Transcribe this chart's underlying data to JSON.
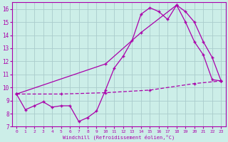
{
  "xlabel": "Windchill (Refroidissement éolien,°C)",
  "bg_color": "#cceee8",
  "grid_color": "#aacccc",
  "line_color": "#aa00aa",
  "xlim": [
    -0.5,
    23.5
  ],
  "ylim": [
    7,
    16.5
  ],
  "xticks": [
    0,
    1,
    2,
    3,
    4,
    5,
    6,
    7,
    8,
    9,
    10,
    11,
    12,
    13,
    14,
    15,
    16,
    17,
    18,
    19,
    20,
    21,
    22,
    23
  ],
  "yticks": [
    7,
    8,
    9,
    10,
    11,
    12,
    13,
    14,
    15,
    16
  ],
  "line1_x": [
    0,
    1,
    2,
    3,
    4,
    5,
    6,
    7,
    8,
    9,
    10,
    11,
    12,
    13,
    14,
    15,
    16,
    17,
    18,
    19,
    20,
    21,
    22,
    23
  ],
  "line1_y": [
    9.5,
    8.3,
    8.6,
    8.9,
    8.5,
    8.6,
    8.6,
    7.4,
    7.7,
    8.2,
    9.8,
    11.5,
    12.4,
    13.6,
    15.6,
    16.1,
    15.8,
    15.2,
    16.3,
    15.0,
    13.5,
    12.5,
    10.6,
    10.5
  ],
  "line2_x": [
    0,
    5,
    10,
    15,
    20,
    23
  ],
  "line2_y": [
    9.5,
    9.5,
    9.6,
    9.8,
    10.3,
    10.5
  ],
  "line3_x": [
    0,
    10,
    14,
    18,
    19,
    20,
    21,
    22,
    23
  ],
  "line3_y": [
    9.5,
    11.8,
    14.2,
    16.3,
    15.8,
    15.0,
    13.5,
    12.3,
    10.5
  ]
}
